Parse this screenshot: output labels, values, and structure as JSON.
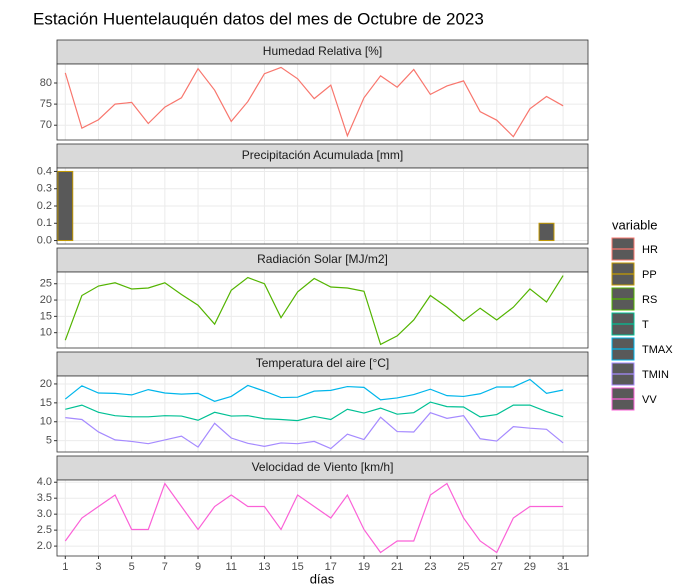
{
  "title": "Estación Huentelauquén datos del mes de Octubre de 2023",
  "x_label": "días",
  "legend_title": "variable",
  "chart_data": [
    {
      "type": "line",
      "title": "Humedad Relativa [%]",
      "x": [
        1,
        2,
        3,
        4,
        5,
        6,
        7,
        8,
        9,
        10,
        11,
        12,
        13,
        14,
        15,
        16,
        17,
        18,
        19,
        20,
        21,
        22,
        23,
        24,
        25,
        26,
        27,
        28,
        29,
        30,
        31
      ],
      "xlim": [
        0.5,
        32.5
      ],
      "xticks": [
        1,
        3,
        5,
        7,
        9,
        11,
        13,
        15,
        17,
        19,
        21,
        23,
        25,
        27,
        29,
        31
      ],
      "ylim": [
        66.5,
        84.5
      ],
      "yticks": [
        70,
        75,
        80
      ],
      "grid": true,
      "series": [
        {
          "name": "HR",
          "color": "#F8766D",
          "values": [
            82.4,
            69.3,
            71.3,
            75,
            75.4,
            70.4,
            74.3,
            76.5,
            83.4,
            78.3,
            70.9,
            75.6,
            82.2,
            83.7,
            81,
            76.3,
            79.5,
            67.5,
            76.5,
            81.7,
            79,
            83.2,
            77.3,
            79.3,
            80.5,
            73.2,
            71.2,
            67.3,
            73.9,
            76.8,
            74.6
          ]
        }
      ]
    },
    {
      "type": "bar",
      "title": "Precipitación Acumulada [mm]",
      "x": [
        1,
        2,
        3,
        4,
        5,
        6,
        7,
        8,
        9,
        10,
        11,
        12,
        13,
        14,
        15,
        16,
        17,
        18,
        19,
        20,
        21,
        22,
        23,
        24,
        25,
        26,
        27,
        28,
        29,
        30,
        31
      ],
      "xlim": [
        0.5,
        32.5
      ],
      "xticks": [
        1,
        3,
        5,
        7,
        9,
        11,
        13,
        15,
        17,
        19,
        21,
        23,
        25,
        27,
        29,
        31
      ],
      "ylim": [
        -0.02,
        0.42
      ],
      "yticks": [
        {
          "value": 0,
          "label": "0.0"
        },
        0.1,
        0.2,
        0.3,
        0.4
      ],
      "grid": true,
      "series": [
        {
          "name": "PP",
          "color": "#C49A00",
          "fill": "#595959",
          "values": [
            0.4,
            0,
            0,
            0,
            0,
            0,
            0,
            0,
            0,
            0,
            0,
            0,
            0,
            0,
            0,
            0,
            0,
            0,
            0,
            0,
            0,
            0,
            0,
            0,
            0,
            0,
            0,
            0,
            0,
            0.1,
            0
          ]
        }
      ]
    },
    {
      "type": "line",
      "title": "Radiación Solar [MJ/m2]",
      "x": [
        1,
        2,
        3,
        4,
        5,
        6,
        7,
        8,
        9,
        10,
        11,
        12,
        13,
        14,
        15,
        16,
        17,
        18,
        19,
        20,
        21,
        22,
        23,
        24,
        25,
        26,
        27,
        28,
        29,
        30,
        31
      ],
      "xlim": [
        0.5,
        32.5
      ],
      "xticks": [
        1,
        3,
        5,
        7,
        9,
        11,
        13,
        15,
        17,
        19,
        21,
        23,
        25,
        27,
        29,
        31
      ],
      "ylim": [
        5.3,
        28.6
      ],
      "yticks": [
        10,
        15,
        20,
        25
      ],
      "grid": true,
      "series": [
        {
          "name": "RS",
          "color": "#53B400",
          "values": [
            7.7,
            21.4,
            24.3,
            25.3,
            23.4,
            23.7,
            25.3,
            21.7,
            18.4,
            12.6,
            23,
            26.9,
            25,
            14.6,
            22.5,
            26.6,
            24,
            23.7,
            22.7,
            6.4,
            9,
            13.9,
            21.4,
            17.8,
            13.6,
            17.5,
            13.9,
            17.8,
            23.4,
            19.4,
            27.5
          ]
        }
      ]
    },
    {
      "type": "line",
      "title": "Temperatura del aire [°C]",
      "x": [
        1,
        2,
        3,
        4,
        5,
        6,
        7,
        8,
        9,
        10,
        11,
        12,
        13,
        14,
        15,
        16,
        17,
        18,
        19,
        20,
        21,
        22,
        23,
        24,
        25,
        26,
        27,
        28,
        29,
        30,
        31
      ],
      "xlim": [
        0.5,
        32.5
      ],
      "xticks": [
        1,
        3,
        5,
        7,
        9,
        11,
        13,
        15,
        17,
        19,
        21,
        23,
        25,
        27,
        29,
        31
      ],
      "ylim": [
        2.0,
        22.1
      ],
      "yticks": [
        5,
        10,
        15,
        20
      ],
      "grid": true,
      "series": [
        {
          "name": "T",
          "color": "#00C094",
          "values": [
            13.3,
            14.4,
            12.5,
            11.6,
            11.3,
            11.3,
            11.6,
            11.5,
            10.4,
            12.5,
            11.5,
            11.6,
            10.8,
            10.6,
            10.3,
            11.4,
            10.6,
            13.3,
            12.3,
            13.6,
            12,
            12.4,
            15.2,
            14,
            13.9,
            11.3,
            11.9,
            14.4,
            14.4,
            12.7,
            11.3
          ]
        },
        {
          "name": "TMAX",
          "color": "#00B6EB",
          "values": [
            16,
            19.5,
            17.6,
            17.5,
            17.1,
            18.5,
            17.6,
            17.3,
            17.5,
            15.4,
            16.7,
            19.6,
            18.1,
            16.4,
            16.5,
            18.1,
            18.3,
            19.3,
            19.1,
            15.8,
            16.3,
            17.2,
            18.6,
            16.9,
            16.7,
            17.4,
            19.2,
            19.2,
            21.2,
            17.5,
            18.4
          ]
        },
        {
          "name": "TMIN",
          "color": "#A58AFF",
          "values": [
            11.1,
            10.6,
            7.3,
            5.2,
            4.8,
            4.2,
            5.2,
            6.2,
            3.3,
            9.6,
            5.7,
            4.3,
            3.5,
            4.4,
            4.2,
            4.8,
            2.9,
            6.7,
            5.3,
            11.2,
            7.4,
            7.3,
            12.4,
            10.9,
            11.6,
            5.5,
            4.9,
            8.7,
            8.3,
            8,
            4.4
          ]
        }
      ]
    },
    {
      "type": "line",
      "title": "Velocidad de Viento [km/h]",
      "x": [
        1,
        2,
        3,
        4,
        5,
        6,
        7,
        8,
        9,
        10,
        11,
        12,
        13,
        14,
        15,
        16,
        17,
        18,
        19,
        20,
        21,
        22,
        23,
        24,
        25,
        26,
        27,
        28,
        29,
        30,
        31
      ],
      "xlim": [
        0.5,
        32.5
      ],
      "xticks": [
        1,
        3,
        5,
        7,
        9,
        11,
        13,
        15,
        17,
        19,
        21,
        23,
        25,
        27,
        29,
        31
      ],
      "ylim": [
        1.69,
        4.07
      ],
      "yticks": [
        {
          "value": 2,
          "label": "2.0"
        },
        2.5,
        {
          "value": 3,
          "label": "3.0"
        },
        3.5,
        {
          "value": 4,
          "label": "4.0"
        }
      ],
      "grid": true,
      "series": [
        {
          "name": "VV",
          "color": "#FB61D7",
          "values": [
            2.16,
            2.88,
            3.24,
            3.6,
            2.52,
            2.52,
            3.96,
            3.24,
            2.52,
            3.24,
            3.6,
            3.24,
            3.24,
            2.52,
            3.6,
            3.24,
            2.88,
            3.6,
            2.52,
            1.8,
            2.16,
            2.16,
            3.6,
            3.96,
            2.88,
            2.16,
            1.8,
            2.88,
            3.24,
            3.24,
            3.24
          ]
        }
      ]
    }
  ]
}
